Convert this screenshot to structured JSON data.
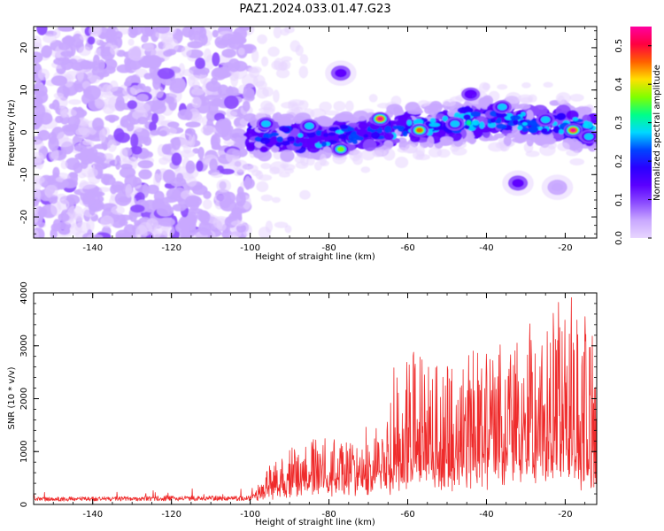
{
  "title": "PAZ1.2024.033.01.47.G23",
  "chart_data": [
    {
      "type": "heatmap",
      "xlabel": "Height of straight line (km)",
      "ylabel": "Frequency (Hz)",
      "xlim": [
        -155,
        -12
      ],
      "ylim": [
        -25,
        25
      ],
      "x_ticks": [
        "-140",
        "-120",
        "-100",
        "-80",
        "-60",
        "-40",
        "-20"
      ],
      "y_ticks": [
        "-20",
        "-10",
        "0",
        "10",
        "20"
      ],
      "colorbar": {
        "label": "Normalized spectral amplitude",
        "range": [
          0,
          0.55
        ],
        "ticks": [
          "0.0",
          "0.1",
          "0.2",
          "0.3",
          "0.4",
          "0.5"
        ],
        "colormap": "gist_rainbow",
        "colors": [
          "#e8d6ff",
          "#c9a8ff",
          "#8c4cff",
          "#5a00ff",
          "#2a00ff",
          "#0044ff",
          "#00d8ff",
          "#00ff88",
          "#80ff00",
          "#ffe000",
          "#ff6000",
          "#ff0040",
          "#ff00a0"
        ]
      },
      "features": {
        "noise_region_x": [
          -155,
          -100
        ],
        "band_region_x": [
          -100,
          -12
        ],
        "band_center_y": [
          [
            -100,
            -1
          ],
          [
            -80,
            -1
          ],
          [
            -60,
            1
          ],
          [
            -40,
            3
          ],
          [
            -20,
            2
          ],
          [
            -12,
            0
          ]
        ],
        "band_half_width": 4,
        "hotspots": [
          {
            "x": -67,
            "y": 3.2,
            "amp": 0.55
          },
          {
            "x": -57,
            "y": 0.5,
            "amp": 0.5
          },
          {
            "x": -18,
            "y": 0.5,
            "amp": 0.55
          },
          {
            "x": -77,
            "y": -4,
            "amp": 0.4
          },
          {
            "x": -36,
            "y": 6,
            "amp": 0.35
          },
          {
            "x": -25,
            "y": 3,
            "amp": 0.35
          },
          {
            "x": -14,
            "y": -1,
            "amp": 0.35
          },
          {
            "x": -96,
            "y": 2,
            "amp": 0.3
          },
          {
            "x": -85,
            "y": 1.5,
            "amp": 0.3
          },
          {
            "x": -48,
            "y": 2,
            "amp": 0.3
          },
          {
            "x": -44,
            "y": 9,
            "amp": 0.2
          }
        ],
        "isolated_blobs": [
          {
            "x": -77,
            "y": 14,
            "amp": 0.15
          },
          {
            "x": -32,
            "y": -12,
            "amp": 0.12
          },
          {
            "x": -22,
            "y": -13,
            "amp": 0.05
          }
        ]
      }
    },
    {
      "type": "line",
      "xlabel": "Height of straight line (km)",
      "ylabel": "SNR (10 * v/v)",
      "xlim": [
        -155,
        -12
      ],
      "ylim": [
        0,
        4000
      ],
      "x_ticks": [
        "-140",
        "-120",
        "-100",
        "-80",
        "-60",
        "-40",
        "-20"
      ],
      "y_ticks": [
        "0",
        "1000",
        "2000",
        "3000",
        "4000"
      ],
      "series": [
        {
          "color": "#ef2b2b",
          "envelope": [
            {
              "x": -155,
              "base": 100,
              "peak": 250
            },
            {
              "x": -100,
              "base": 120,
              "peak": 300
            },
            {
              "x": -92,
              "base": 250,
              "peak": 950
            },
            {
              "x": -80,
              "base": 350,
              "peak": 1300
            },
            {
              "x": -66,
              "base": 400,
              "peak": 1450
            },
            {
              "x": -63,
              "base": 500,
              "peak": 3150
            },
            {
              "x": -50,
              "base": 500,
              "peak": 2800
            },
            {
              "x": -40,
              "base": 600,
              "peak": 3000
            },
            {
              "x": -30,
              "base": 600,
              "peak": 3300
            },
            {
              "x": -20,
              "base": 700,
              "peak": 4000
            },
            {
              "x": -12,
              "base": 500,
              "peak": 3000
            }
          ]
        }
      ]
    }
  ]
}
